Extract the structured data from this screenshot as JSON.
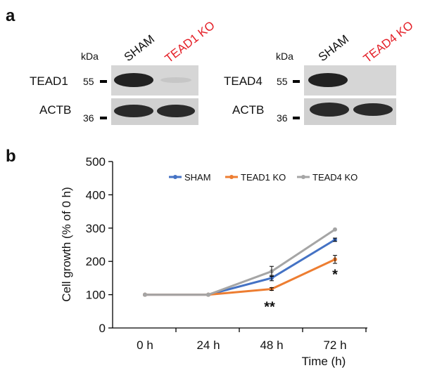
{
  "panel_a": {
    "label": "a",
    "left_blot": {
      "kda": "kDa",
      "lanes": [
        "SHAM",
        "TEAD1 KO"
      ],
      "rows": [
        {
          "protein": "TEAD1",
          "marker": "55"
        },
        {
          "protein": "ACTB",
          "marker": "36"
        }
      ]
    },
    "right_blot": {
      "kda": "kDa",
      "lanes": [
        "SHAM",
        "TEAD4 KO"
      ],
      "rows": [
        {
          "protein": "TEAD4",
          "marker": "55"
        },
        {
          "protein": "ACTB",
          "marker": "36"
        }
      ]
    }
  },
  "panel_b": {
    "label": "b"
  },
  "chart_data": {
    "type": "line",
    "x_label": "Time (h)",
    "y_label": "Cell growth (% of 0 h)",
    "categories": [
      "0 h",
      "24 h",
      "48 h",
      "72 h"
    ],
    "series": [
      {
        "name": "SHAM",
        "color": "#4472c4",
        "values": [
          100,
          100,
          150,
          265
        ],
        "errors": [
          null,
          null,
          8,
          5
        ]
      },
      {
        "name": "TEAD1 KO",
        "color": "#ed7d31",
        "values": [
          100,
          100,
          117,
          206
        ],
        "errors": [
          null,
          null,
          4,
          12
        ]
      },
      {
        "name": "TEAD4 KO",
        "color": "#a5a5a5",
        "values": [
          100,
          100,
          170,
          296
        ],
        "errors": [
          null,
          null,
          15,
          null
        ]
      }
    ],
    "ylim": [
      0,
      500
    ],
    "yticks": [
      0,
      100,
      200,
      300,
      400,
      500
    ],
    "legend": "top",
    "annotations": [
      "**",
      "*"
    ]
  }
}
